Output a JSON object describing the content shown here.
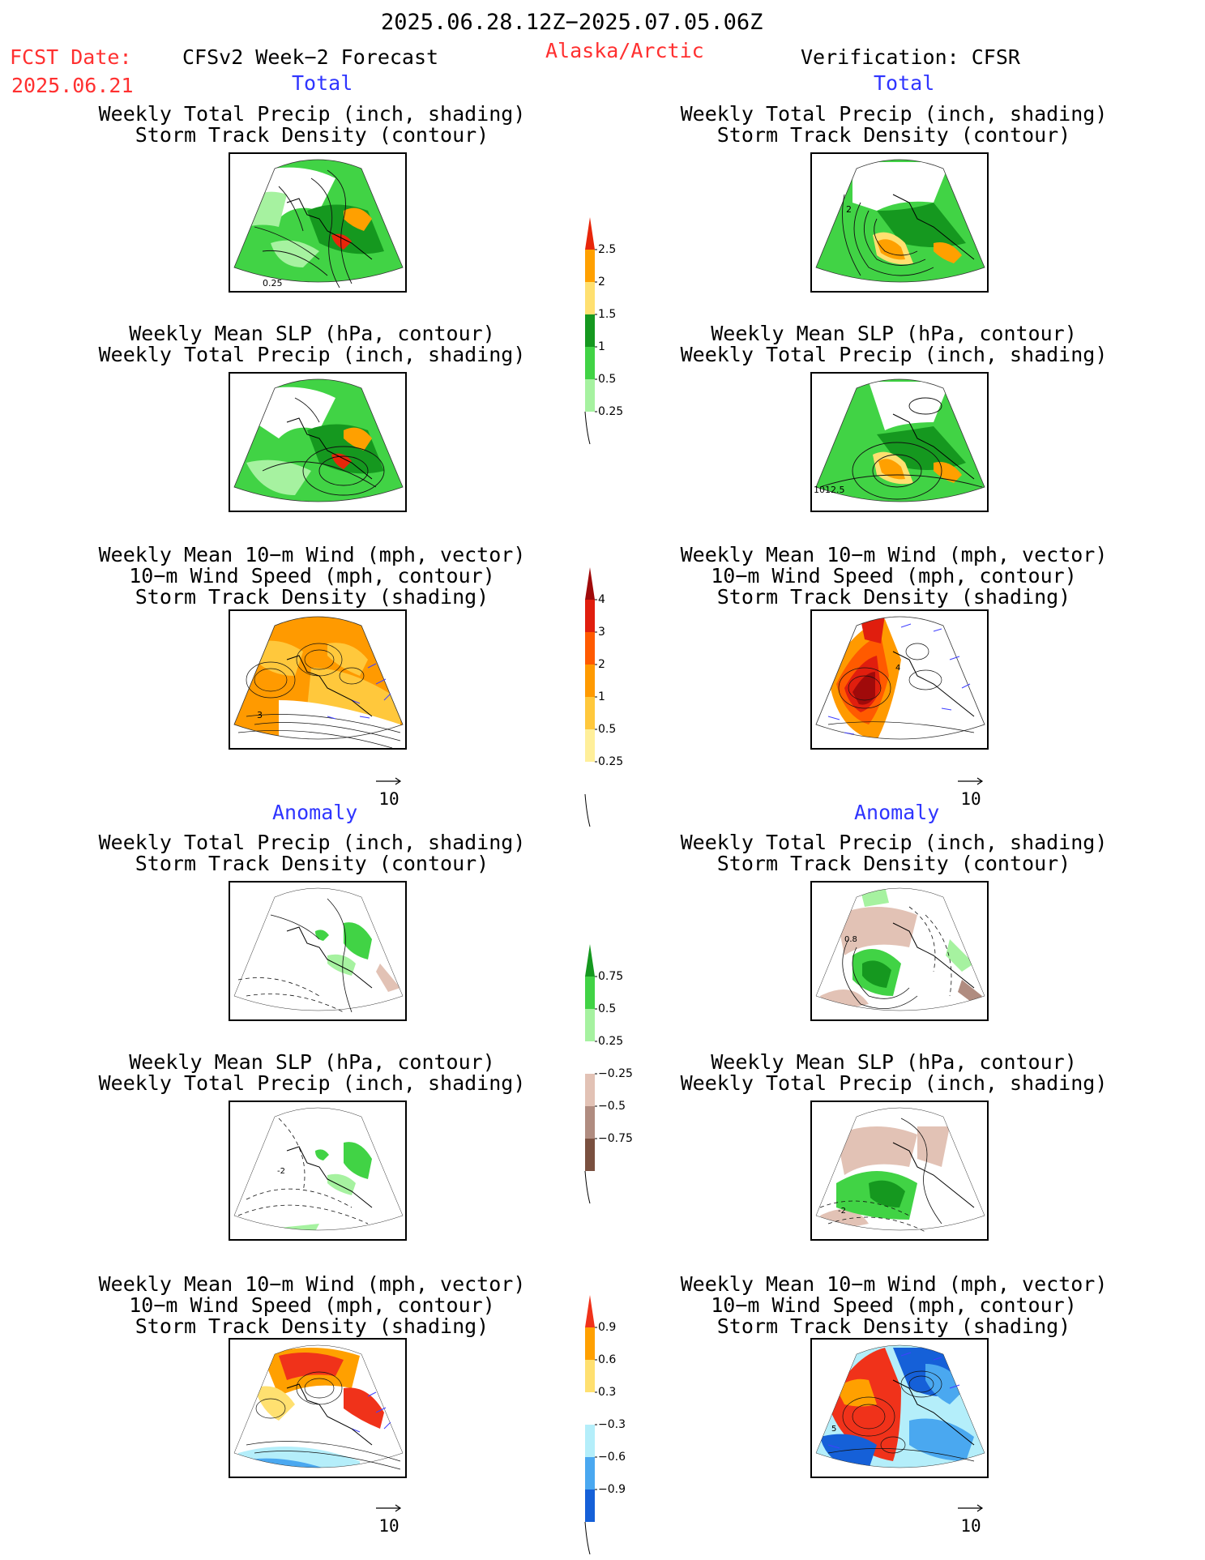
{
  "header": {
    "period": "2025.06.28.12Z−2025.07.05.06Z",
    "fcst_label": "FCST Date:",
    "fcst_date": "2025.06.21",
    "model": "CFSv2 Week−2 Forecast",
    "region": "Alaska/Arctic",
    "verification": "Verification: CFSR"
  },
  "sections": {
    "total": "Total",
    "anomaly": "Anomaly"
  },
  "titles": {
    "precip_track": [
      "Weekly Total Precip (inch, shading)",
      "Storm Track Density (contour)"
    ],
    "slp_precip": [
      "Weekly Mean SLP (hPa, contour)",
      "Weekly Total Precip (inch, shading)"
    ],
    "wind_track": [
      "Weekly Mean 10−m Wind (mph, vector)",
      "10−m Wind Speed (mph, contour)",
      "Storm Track Density (shading)"
    ]
  },
  "panel_labels": {
    "fcst_total_precip": "0.25",
    "cfsr_total_precip": "2",
    "cfsr_total_slp": "1012.5",
    "fcst_total_wind": "3",
    "cfsr_total_wind": "4",
    "cfsr_anom_precip": "0.8",
    "fcst_anom_slp": "-2",
    "cfsr_anom_slp": "-2",
    "cfsr_anom_wind": "5"
  },
  "vector_reference": "10",
  "colorbars": {
    "precip_total": {
      "labels": [
        "2.5",
        "2",
        "1.5",
        "1",
        "0.5",
        "0.25"
      ],
      "colors": [
        "#e8260a",
        "#ffa000",
        "#ffe070",
        "#15981f",
        "#41d345",
        "#a6f2a0"
      ]
    },
    "storm_total": {
      "labels": [
        "4",
        "3",
        "2",
        "1",
        "0.5",
        "0.25"
      ],
      "colors": [
        "#a00a0a",
        "#e01e0e",
        "#ff5a00",
        "#ff9a00",
        "#ffc83c",
        "#ffef9a",
        "#ffffff"
      ]
    },
    "precip_anom": {
      "labels": [
        "0.75",
        "0.5",
        "0.25",
        "−0.25",
        "−0.5",
        "−0.75"
      ],
      "colors": [
        "#15981f",
        "#41d345",
        "#a6f2a0",
        "#ffffff",
        "#e2c2b5",
        "#b08c80",
        "#7a5040"
      ]
    },
    "storm_anom": {
      "labels": [
        "0.9",
        "0.6",
        "0.3",
        "−0.3",
        "−0.6",
        "−0.9"
      ],
      "colors": [
        "#f0321a",
        "#ffa000",
        "#ffe070",
        "#ffffff",
        "#b4eefa",
        "#4aa8f0",
        "#1560d8"
      ]
    }
  }
}
